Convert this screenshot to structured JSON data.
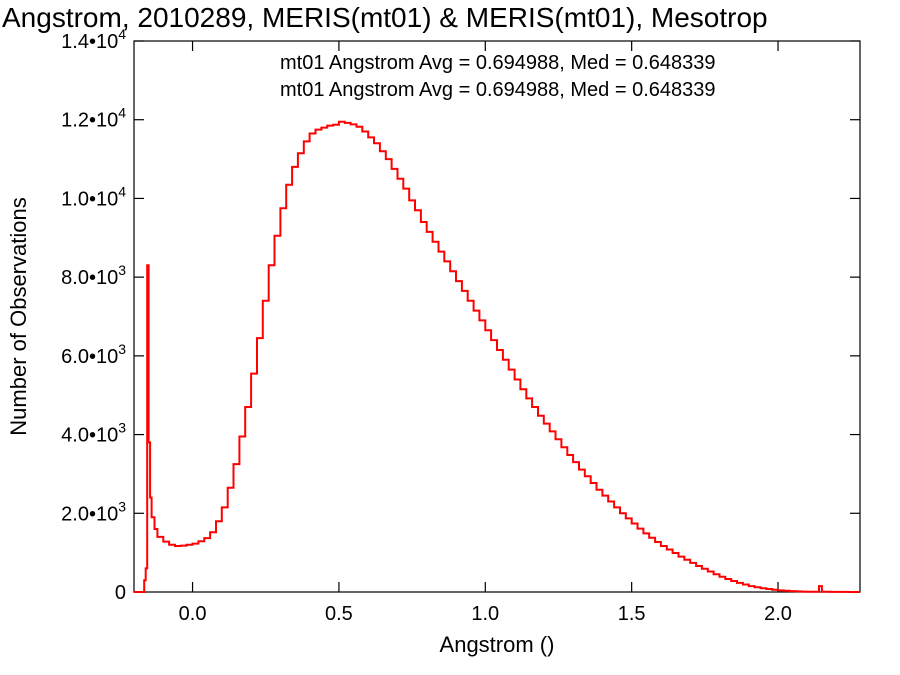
{
  "title": "Angstrom, 2010289, MERIS(mt01) & MERIS(mt01), Mesotrop",
  "chart_data": {
    "type": "line",
    "title": "Angstrom, 2010289, MERIS(mt01) & MERIS(mt01), Mesotrop",
    "xlabel": "Angstrom ()",
    "ylabel": "Number of Observations",
    "xlim": [
      -0.2,
      2.28
    ],
    "ylim": [
      0,
      14000
    ],
    "x_ticks": [
      {
        "value": 0.0,
        "label": "0.0"
      },
      {
        "value": 0.5,
        "label": "0.5"
      },
      {
        "value": 1.0,
        "label": "1.0"
      },
      {
        "value": 1.5,
        "label": "1.5"
      },
      {
        "value": 2.0,
        "label": "2.0"
      }
    ],
    "y_ticks": [
      {
        "value": 0,
        "mantissa": "0",
        "exp": ""
      },
      {
        "value": 2000,
        "mantissa": "2.0•10",
        "exp": "3"
      },
      {
        "value": 4000,
        "mantissa": "4.0•10",
        "exp": "3"
      },
      {
        "value": 6000,
        "mantissa": "6.0•10",
        "exp": "3"
      },
      {
        "value": 8000,
        "mantissa": "8.0•10",
        "exp": "3"
      },
      {
        "value": 10000,
        "mantissa": "1.0•10",
        "exp": "4"
      },
      {
        "value": 12000,
        "mantissa": "1.2•10",
        "exp": "4"
      },
      {
        "value": 14000,
        "mantissa": "1.4•10",
        "exp": "4"
      }
    ],
    "annotations": [
      {
        "text": "mt01 Angstrom Avg = 0.694988, Med = 0.648339",
        "color": "#000000"
      },
      {
        "text": "mt01 Angstrom Avg = 0.694988, Med = 0.648339",
        "color": "#ff0000"
      }
    ],
    "series": [
      {
        "color": "#ff0000",
        "style": "step",
        "points": [
          [
            -0.2,
            0
          ],
          [
            -0.175,
            0
          ],
          [
            -0.165,
            300
          ],
          [
            -0.16,
            600
          ],
          [
            -0.155,
            8300
          ],
          [
            -0.15,
            3800
          ],
          [
            -0.145,
            2400
          ],
          [
            -0.14,
            1900
          ],
          [
            -0.13,
            1600
          ],
          [
            -0.12,
            1400
          ],
          [
            -0.1,
            1280
          ],
          [
            -0.08,
            1200
          ],
          [
            -0.06,
            1170
          ],
          [
            -0.04,
            1180
          ],
          [
            -0.02,
            1200
          ],
          [
            0.0,
            1230
          ],
          [
            0.02,
            1290
          ],
          [
            0.04,
            1370
          ],
          [
            0.06,
            1520
          ],
          [
            0.08,
            1800
          ],
          [
            0.1,
            2150
          ],
          [
            0.12,
            2650
          ],
          [
            0.14,
            3250
          ],
          [
            0.16,
            3950
          ],
          [
            0.18,
            4700
          ],
          [
            0.2,
            5550
          ],
          [
            0.22,
            6450
          ],
          [
            0.24,
            7400
          ],
          [
            0.26,
            8300
          ],
          [
            0.28,
            9050
          ],
          [
            0.3,
            9750
          ],
          [
            0.32,
            10350
          ],
          [
            0.34,
            10800
          ],
          [
            0.36,
            11150
          ],
          [
            0.38,
            11450
          ],
          [
            0.4,
            11650
          ],
          [
            0.42,
            11750
          ],
          [
            0.44,
            11800
          ],
          [
            0.46,
            11850
          ],
          [
            0.48,
            11870
          ],
          [
            0.5,
            11950
          ],
          [
            0.52,
            11920
          ],
          [
            0.54,
            11880
          ],
          [
            0.56,
            11820
          ],
          [
            0.58,
            11700
          ],
          [
            0.6,
            11550
          ],
          [
            0.62,
            11400
          ],
          [
            0.64,
            11200
          ],
          [
            0.66,
            11000
          ],
          [
            0.68,
            10750
          ],
          [
            0.7,
            10500
          ],
          [
            0.72,
            10250
          ],
          [
            0.74,
            9950
          ],
          [
            0.76,
            9700
          ],
          [
            0.78,
            9400
          ],
          [
            0.8,
            9150
          ],
          [
            0.82,
            8900
          ],
          [
            0.84,
            8650
          ],
          [
            0.86,
            8400
          ],
          [
            0.88,
            8150
          ],
          [
            0.9,
            7900
          ],
          [
            0.92,
            7650
          ],
          [
            0.94,
            7400
          ],
          [
            0.96,
            7150
          ],
          [
            0.98,
            6900
          ],
          [
            1.0,
            6650
          ],
          [
            1.02,
            6400
          ],
          [
            1.04,
            6150
          ],
          [
            1.06,
            5900
          ],
          [
            1.08,
            5650
          ],
          [
            1.1,
            5400
          ],
          [
            1.12,
            5150
          ],
          [
            1.14,
            4920
          ],
          [
            1.16,
            4700
          ],
          [
            1.18,
            4480
          ],
          [
            1.2,
            4280
          ],
          [
            1.22,
            4080
          ],
          [
            1.24,
            3880
          ],
          [
            1.26,
            3680
          ],
          [
            1.28,
            3480
          ],
          [
            1.3,
            3300
          ],
          [
            1.32,
            3110
          ],
          [
            1.34,
            2940
          ],
          [
            1.36,
            2770
          ],
          [
            1.38,
            2600
          ],
          [
            1.4,
            2450
          ],
          [
            1.42,
            2300
          ],
          [
            1.44,
            2150
          ],
          [
            1.46,
            2000
          ],
          [
            1.48,
            1870
          ],
          [
            1.5,
            1740
          ],
          [
            1.52,
            1610
          ],
          [
            1.54,
            1490
          ],
          [
            1.56,
            1380
          ],
          [
            1.58,
            1270
          ],
          [
            1.6,
            1170
          ],
          [
            1.62,
            1080
          ],
          [
            1.64,
            990
          ],
          [
            1.66,
            900
          ],
          [
            1.68,
            820
          ],
          [
            1.7,
            740
          ],
          [
            1.72,
            660
          ],
          [
            1.74,
            590
          ],
          [
            1.76,
            520
          ],
          [
            1.78,
            450
          ],
          [
            1.8,
            390
          ],
          [
            1.82,
            330
          ],
          [
            1.84,
            280
          ],
          [
            1.86,
            230
          ],
          [
            1.88,
            190
          ],
          [
            1.9,
            150
          ],
          [
            1.92,
            120
          ],
          [
            1.94,
            95
          ],
          [
            1.96,
            75
          ],
          [
            1.98,
            55
          ],
          [
            2.0,
            40
          ],
          [
            2.02,
            30
          ],
          [
            2.04,
            22
          ],
          [
            2.06,
            15
          ],
          [
            2.08,
            10
          ],
          [
            2.1,
            8
          ],
          [
            2.12,
            6
          ],
          [
            2.14,
            150
          ],
          [
            2.15,
            5
          ],
          [
            2.18,
            3
          ],
          [
            2.2,
            2
          ],
          [
            2.24,
            0
          ],
          [
            2.28,
            0
          ]
        ]
      }
    ]
  }
}
